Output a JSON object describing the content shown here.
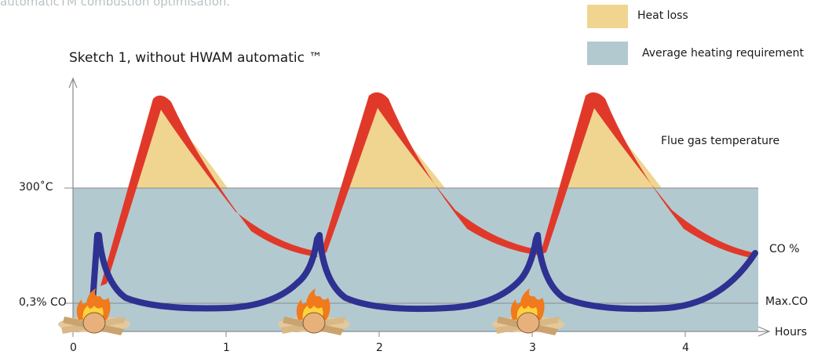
{
  "caption": "automaticTM combustion optimisation.",
  "legend": {
    "heat_loss": {
      "label": "Heat loss",
      "color": "#f0d590"
    },
    "heating_req": {
      "label": "Average heating requirement",
      "color": "#b3c9d0"
    }
  },
  "sketch_title": "Sketch 1, without HWAM automatic ™",
  "y_labels": {
    "temp_300": "300˚C",
    "co_03": "0,3% CO"
  },
  "right_labels": {
    "flue_gas": "Flue gas temperature",
    "co_pct": "CO  %",
    "max_co": "Max.CO",
    "hours": "Hours"
  },
  "x_ticks": [
    "0",
    "1",
    "2",
    "3",
    "4"
  ],
  "colors": {
    "flue_curve": "#e0392a",
    "co_curve": "#2e3191",
    "axis": "#8a8a8a"
  },
  "icons": {
    "fire": "fire-log-icon"
  }
}
